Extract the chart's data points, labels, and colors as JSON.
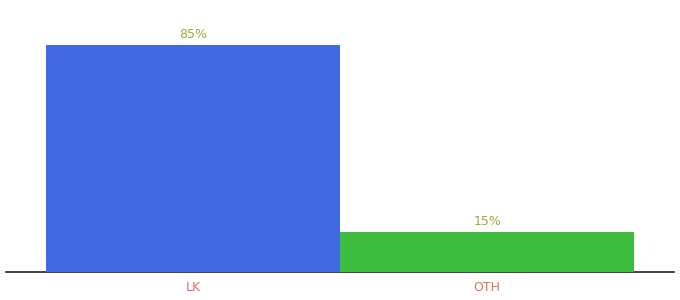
{
  "categories": [
    "LK",
    "OTH"
  ],
  "values": [
    85,
    15
  ],
  "bar_colors": [
    "#4169e1",
    "#3ebc3e"
  ],
  "label_color": "#9aab3a",
  "tick_color": "#e07060",
  "ylim": [
    0,
    100
  ],
  "bar_width": 0.55,
  "background_color": "#ffffff",
  "label_fontsize": 9,
  "tick_fontsize": 9,
  "x_positions": [
    0.3,
    0.85
  ]
}
